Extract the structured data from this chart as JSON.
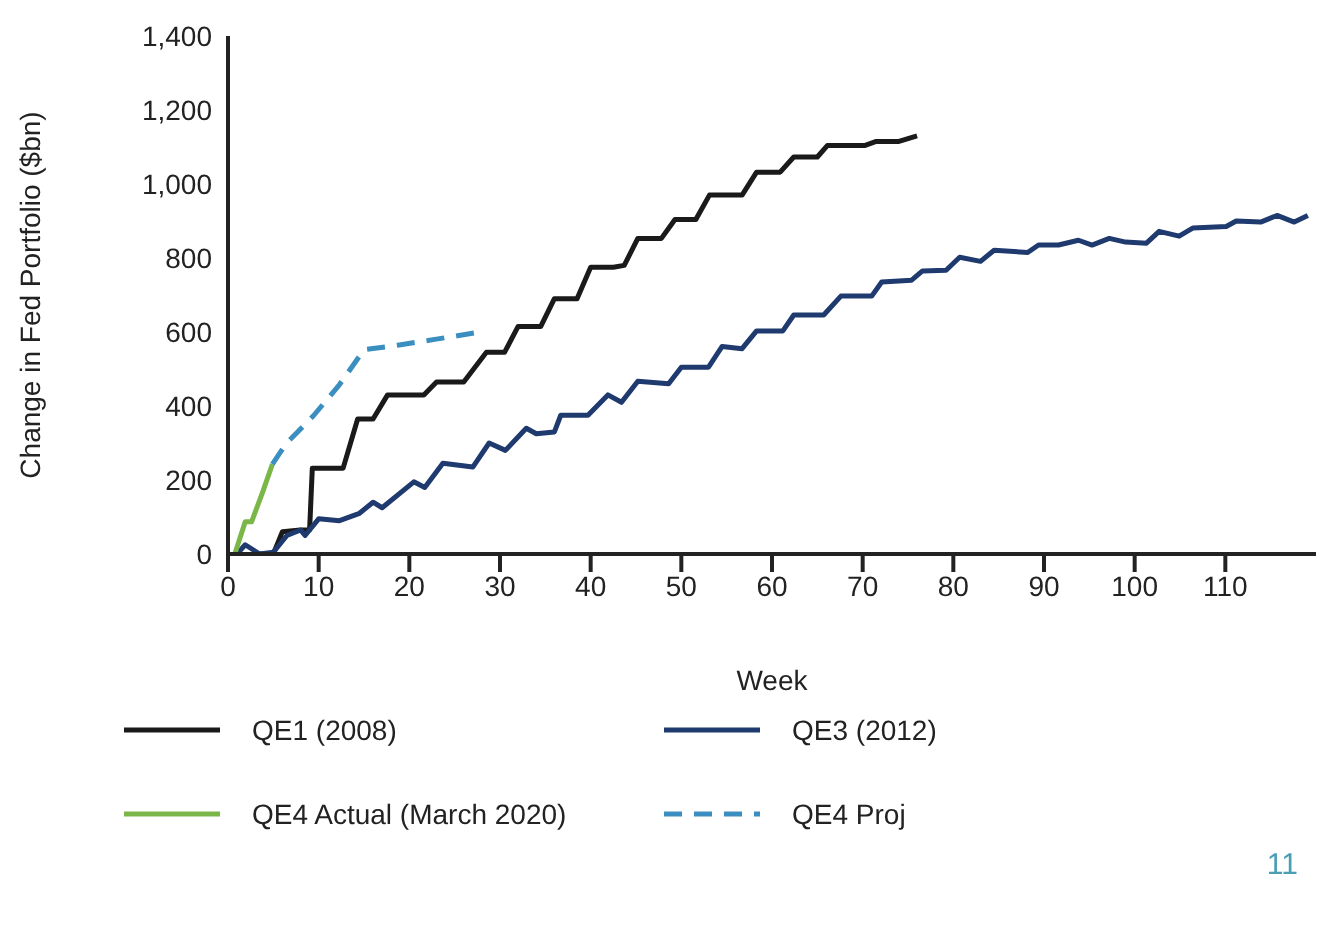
{
  "chart_data": {
    "type": "line",
    "xlabel": "Week",
    "ylabel": "Change in Fed Portfolio ($bn)",
    "xlim": [
      0,
      120
    ],
    "xticks": [
      0,
      10,
      20,
      30,
      40,
      50,
      60,
      70,
      80,
      90,
      100,
      110
    ],
    "ylim": [
      0,
      1400
    ],
    "yticks": [
      {
        "value": 0,
        "label": "0"
      },
      {
        "value": 200,
        "label": "200"
      },
      {
        "value": 400,
        "label": "400"
      },
      {
        "value": 600,
        "label": "600"
      },
      {
        "value": 800,
        "label": "800"
      },
      {
        "value": 1000,
        "label": "1,000"
      },
      {
        "value": 1200,
        "label": "1,200"
      },
      {
        "value": 1400,
        "label": "1,400"
      }
    ],
    "grid": false,
    "legend": "bottom",
    "marker": "none",
    "annotations": [
      "11"
    ],
    "series": [
      {
        "name": "QE1 (2008)",
        "color": "#1a1a1a",
        "line_style": "solid",
        "x": [
          3.5,
          5,
          6,
          8,
          9,
          9.3,
          12.7,
          14.3,
          16,
          17.6,
          21.6,
          23,
          26,
          28.5,
          30.5,
          32,
          34.5,
          36,
          38.5,
          40,
          42.5,
          43.7,
          45.2,
          47.8,
          49.3,
          51.6,
          53.1,
          56.7,
          58.3,
          60.9,
          62.4,
          65,
          66.1,
          70.2,
          71.5,
          74,
          76
        ],
        "values": [
          0,
          0,
          60,
          65,
          65,
          232,
          232,
          365,
          365,
          430,
          430,
          465,
          465,
          545,
          545,
          615,
          615,
          690,
          690,
          775,
          775,
          780,
          853,
          853,
          904,
          904,
          970,
          970,
          1032,
          1032,
          1073,
          1073,
          1104,
          1104,
          1115,
          1115,
          1130
        ]
      },
      {
        "name": "QE3 (2012)",
        "color": "#1f3a6e",
        "line_style": "solid",
        "x": [
          1,
          1.9,
          3.5,
          5,
          6.5,
          8,
          8.5,
          10,
          12.3,
          14.5,
          16,
          17,
          20.5,
          21.7,
          23.7,
          27,
          28.8,
          30.6,
          32.9,
          34,
          36,
          36.7,
          39.7,
          41.9,
          43.4,
          45.2,
          48.6,
          50,
          53,
          54.5,
          56.7,
          58.3,
          61.2,
          62.4,
          65.7,
          67.6,
          71,
          72.1,
          75.4,
          76.6,
          79.2,
          80.7,
          83,
          84.5,
          88.2,
          89.4,
          91.6,
          93.8,
          95.3,
          97.2,
          99,
          101.3,
          102.7,
          104.9,
          106.4,
          110.1,
          111.2,
          113.9,
          115.7,
          117.6,
          119.1
        ],
        "values": [
          0,
          25,
          0,
          5,
          50,
          65,
          50,
          95,
          90,
          110,
          140,
          125,
          195,
          180,
          245,
          235,
          300,
          280,
          340,
          325,
          330,
          375,
          375,
          430,
          410,
          467,
          460,
          505,
          505,
          561,
          555,
          603,
          603,
          646,
          646,
          697,
          697,
          735,
          740,
          765,
          767,
          802,
          791,
          821,
          815,
          835,
          835,
          848,
          835,
          853,
          843,
          840,
          872,
          859,
          881,
          885,
          900,
          897,
          915,
          897,
          915
        ]
      },
      {
        "name": "QE4 Actual (March 2020)",
        "color": "#7ab648",
        "line_style": "solid",
        "x": [
          0.75,
          1.9,
          2.6,
          3.8,
          4.9
        ],
        "values": [
          0,
          87,
          87,
          166,
          243
        ]
      },
      {
        "name": "QE4 Proj",
        "color": "#3a8fc0",
        "line_style": "dashed",
        "x": [
          4.9,
          6.4,
          9.4,
          12.3,
          15,
          18.9,
          22.8,
          27.6
        ],
        "values": [
          243,
          298,
          373,
          458,
          552,
          565,
          580,
          599
        ]
      }
    ]
  }
}
